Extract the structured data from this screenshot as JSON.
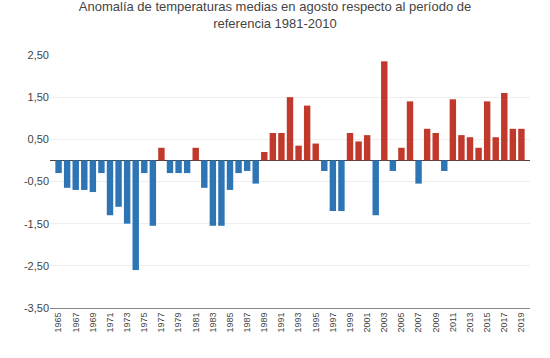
{
  "chart_data": {
    "type": "bar",
    "title": "Anomalía de temperaturas medias en agosto respecto al período de\nreferencia 1981-2010",
    "x": [
      1965,
      1966,
      1967,
      1968,
      1969,
      1970,
      1971,
      1972,
      1973,
      1974,
      1975,
      1976,
      1977,
      1978,
      1979,
      1980,
      1981,
      1982,
      1983,
      1984,
      1985,
      1986,
      1987,
      1988,
      1989,
      1990,
      1991,
      1992,
      1993,
      1994,
      1995,
      1996,
      1997,
      1998,
      1999,
      2000,
      2001,
      2002,
      2003,
      2004,
      2005,
      2006,
      2007,
      2008,
      2009,
      2010,
      2011,
      2012,
      2013,
      2014,
      2015,
      2016,
      2017,
      2018,
      2019
    ],
    "values": [
      -0.3,
      -0.65,
      -0.7,
      -0.7,
      -0.75,
      -0.3,
      -1.3,
      -1.1,
      -1.5,
      -2.6,
      -0.3,
      -1.55,
      0.3,
      -0.3,
      -0.3,
      -0.3,
      0.3,
      -0.65,
      -1.55,
      -1.55,
      -0.7,
      -0.3,
      -0.25,
      -0.55,
      0.2,
      0.65,
      0.65,
      1.5,
      0.35,
      1.3,
      0.4,
      -0.25,
      -1.2,
      -1.2,
      0.65,
      0.45,
      0.6,
      -1.3,
      2.35,
      -0.25,
      0.3,
      1.4,
      -0.55,
      0.75,
      0.65,
      -0.25,
      1.45,
      0.6,
      0.55,
      0.3,
      1.4,
      0.55,
      1.6,
      0.75,
      0.75
    ],
    "colors": [
      "#2e75b6",
      "#2e75b6",
      "#2e75b6",
      "#2e75b6",
      "#2e75b6",
      "#2e75b6",
      "#2e75b6",
      "#2e75b6",
      "#2e75b6",
      "#2e75b6",
      "#2e75b6",
      "#2e75b6",
      "#c0392b",
      "#2e75b6",
      "#2e75b6",
      "#2e75b6",
      "#c0392b",
      "#2e75b6",
      "#2e75b6",
      "#2e75b6",
      "#2e75b6",
      "#2e75b6",
      "#2e75b6",
      "#2e75b6",
      "#c0392b",
      "#c0392b",
      "#c0392b",
      "#c0392b",
      "#c0392b",
      "#c0392b",
      "#c0392b",
      "#2e75b6",
      "#2e75b6",
      "#2e75b6",
      "#c0392b",
      "#c0392b",
      "#c0392b",
      "#2e75b6",
      "#c0392b",
      "#2e75b6",
      "#c0392b",
      "#c0392b",
      "#2e75b6",
      "#c0392b",
      "#c0392b",
      "#2e75b6",
      "#c0392b",
      "#c0392b",
      "#c0392b",
      "#c0392b",
      "#c0392b",
      "#c0392b",
      "#c0392b",
      "#c0392b",
      "#c0392b"
    ],
    "xlim": [
      1964,
      2020
    ],
    "xticks": [
      1965,
      1967,
      1969,
      1971,
      1973,
      1975,
      1977,
      1979,
      1981,
      1983,
      1985,
      1987,
      1989,
      1991,
      1993,
      1995,
      1997,
      1999,
      2001,
      2003,
      2005,
      2007,
      2009,
      2011,
      2013,
      2015,
      2017,
      2019
    ],
    "ylim": [
      -3.5,
      2.5
    ],
    "yticks": [
      {
        "value": -3.5,
        "label": "-3,50"
      },
      {
        "value": -2.5,
        "label": "-2,50"
      },
      {
        "value": -1.5,
        "label": "-1,50"
      },
      {
        "value": -0.5,
        "label": "-0,50"
      },
      {
        "value": 0.5,
        "label": "0,50"
      },
      {
        "value": 1.5,
        "label": "1,50"
      },
      {
        "value": 2.5,
        "label": "2,50"
      }
    ],
    "grid": true
  }
}
